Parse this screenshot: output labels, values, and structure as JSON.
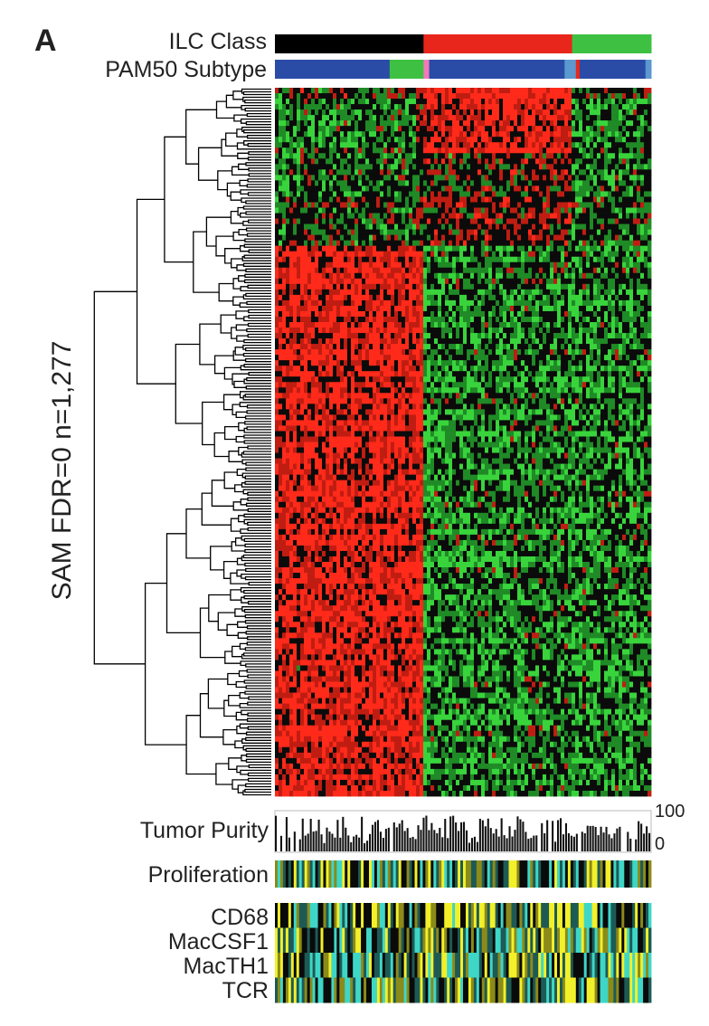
{
  "panel_label": "A",
  "y_axis_label": "SAM FDR=0 n=1,277",
  "tracks": {
    "ilc_class": "ILC Class",
    "pam50": "PAM50 Subtype",
    "tumor_purity": "Tumor Purity",
    "proliferation": "Proliferation"
  },
  "purity_ticks": {
    "max": "100",
    "min": "0"
  },
  "immune_rows": [
    "CD68",
    "MacCSF1",
    "MacTH1",
    "TCR"
  ],
  "colors": {
    "up": "#e8261c",
    "down": "#3ec143",
    "neutral": "#000000",
    "blue": "#2a4ca6",
    "light_blue": "#5b98cf",
    "pink": "#f07ab8",
    "high": "#f2f02a",
    "low": "#3ed6c7"
  },
  "chart_data": {
    "type": "heatmap",
    "genes": 1277,
    "samples_approx": 140,
    "ilc_class_segments": [
      {
        "color": "#000000",
        "fraction": 0.395
      },
      {
        "color": "#e8261c",
        "fraction": 0.395
      },
      {
        "color": "#3ec143",
        "fraction": 0.21
      }
    ],
    "pam50_segments": [
      {
        "color": "#2a4ca6",
        "fraction": 0.305
      },
      {
        "color": "#3ec143",
        "fraction": 0.09
      },
      {
        "color": "#f07ab8",
        "fraction": 0.015
      },
      {
        "color": "#2a4ca6",
        "fraction": 0.36
      },
      {
        "color": "#5b98cf",
        "fraction": 0.03
      },
      {
        "color": "#e8261c",
        "fraction": 0.01
      },
      {
        "color": "#2a4ca6",
        "fraction": 0.175
      },
      {
        "color": "#5b98cf",
        "fraction": 0.015
      }
    ],
    "purity_range": [
      0,
      100
    ],
    "expression_blocks": [
      {
        "gene_fraction_start": 0.0,
        "gene_fraction_end": 0.22,
        "pattern": "up in red ILC class, mixed elsewhere"
      },
      {
        "gene_fraction_start": 0.22,
        "gene_fraction_end": 1.0,
        "pattern": "up in black ILC class, down in red/green classes"
      }
    ]
  }
}
